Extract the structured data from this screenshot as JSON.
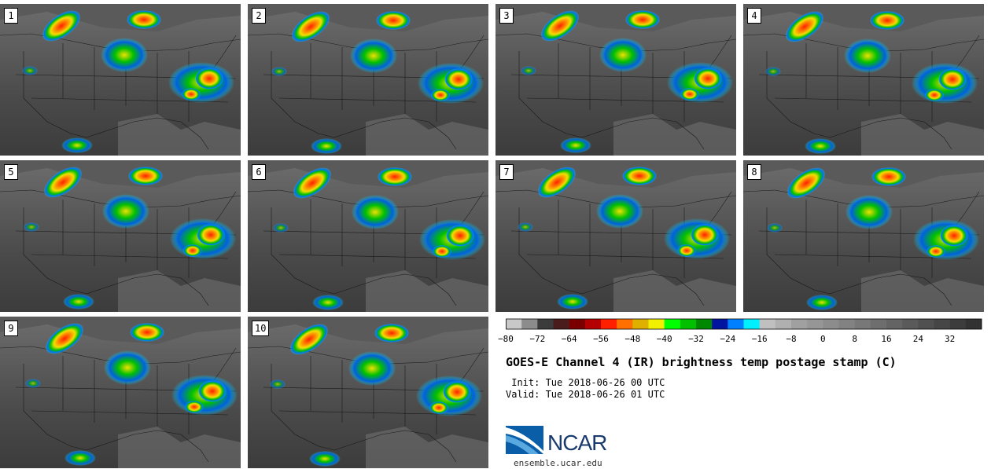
{
  "panels": [
    {
      "label": "1"
    },
    {
      "label": "2"
    },
    {
      "label": "3"
    },
    {
      "label": "4"
    },
    {
      "label": "5"
    },
    {
      "label": "6"
    },
    {
      "label": "7"
    },
    {
      "label": "8"
    },
    {
      "label": "9"
    },
    {
      "label": "10"
    }
  ],
  "colorbar": {
    "colors": [
      "#c8c8c8",
      "#8c8c8c",
      "#3c3c3c",
      "#4a1c1c",
      "#7a0000",
      "#b40000",
      "#ff2000",
      "#ff7000",
      "#e0b000",
      "#f0f000",
      "#00ff00",
      "#00c000",
      "#008800",
      "#0014a0",
      "#0080ff",
      "#00f0ff",
      "#c0c0c0",
      "#b0b0b0",
      "#a0a0a0",
      "#969696",
      "#8c8c8c",
      "#828282",
      "#787878",
      "#6e6e6e",
      "#646464",
      "#5a5a5a",
      "#505050",
      "#464646",
      "#3c3c3c",
      "#323232"
    ],
    "ticks": [
      "-80",
      "-72",
      "-64",
      "-56",
      "-48",
      "-40",
      "-32",
      "-24",
      "-16",
      "-8",
      "0",
      "8",
      "16",
      "24",
      "32"
    ]
  },
  "title": "GOES-E Channel 4 (IR) brightness temp postage stamp (C)",
  "init": " Init: Tue 2018-06-26 00 UTC",
  "valid": "Valid: Tue 2018-06-26 01 UTC",
  "logo_text": "NCAR",
  "url": "ensemble.ucar.edu"
}
